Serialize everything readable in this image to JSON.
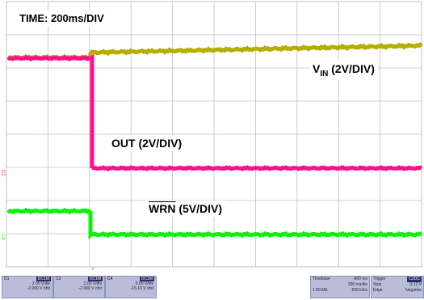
{
  "labels": {
    "time": "TIME: 200ms/DIV",
    "vin_main": "V",
    "vin_sub": "IN",
    "vin_rest": " (2V/DIV)",
    "out": "OUT (2V/DIV)",
    "wrn_main": "WRN",
    "wrn_rest": " (5V/DIV)"
  },
  "colors": {
    "grid": "#bfbfbf",
    "vin": "#b5ae00",
    "out": "#ff0f8a",
    "wrn": "#10f010"
  },
  "channels": [
    {
      "name": "C1",
      "coupling": "DC1M",
      "scale": "2.00 V/div",
      "offset": "-2.000 V ofst"
    },
    {
      "name": "C2",
      "coupling": "DC1M",
      "scale": "2.00 V/div",
      "offset": "-2.000 V ofst"
    },
    {
      "name": "C4",
      "coupling": "DC1M",
      "scale": "5.00 V/div",
      "offset": "-15.10 V ofst"
    }
  ],
  "timebase": {
    "label": "Timebase",
    "delay": "-800 ms",
    "scale": "200 ms/div",
    "samples": "1.00 MS",
    "rate": "500 kS/s"
  },
  "trigger": {
    "label": "Trigger",
    "channels": "C2DC",
    "mode": "Stop",
    "level": "3.12 V",
    "type": "Edge",
    "slope": "Negative"
  },
  "markers": {
    "c1": "C1",
    "c2": "C2",
    "c4": "C4"
  }
}
